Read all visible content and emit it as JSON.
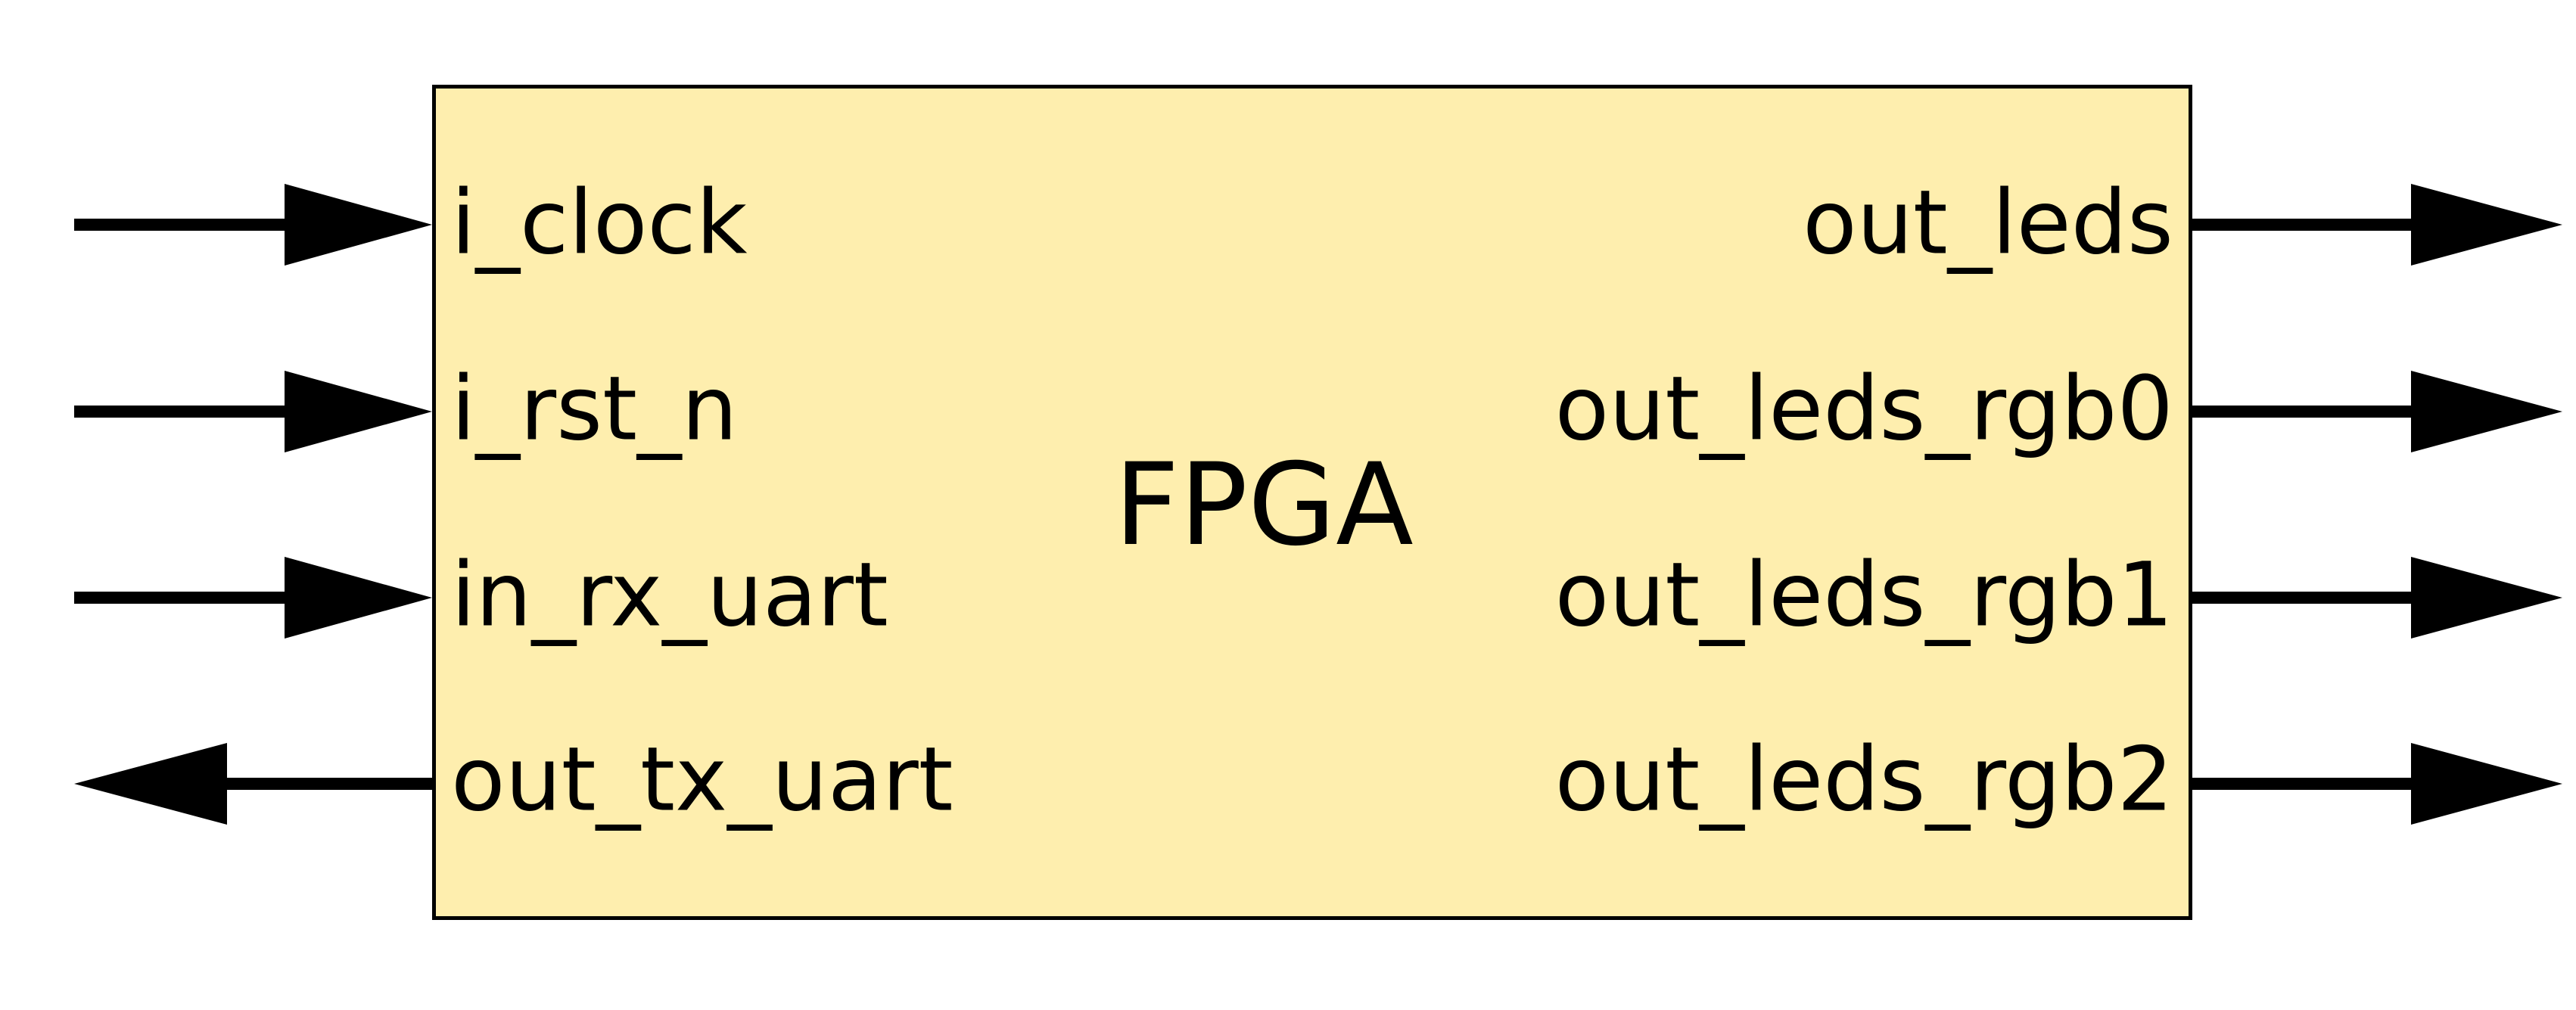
{
  "block": {
    "title": "FPGA",
    "fill": "#feeeae",
    "stroke": "#000000"
  },
  "ports": {
    "left": [
      {
        "name": "i_clock",
        "direction": "in"
      },
      {
        "name": "i_rst_n",
        "direction": "in"
      },
      {
        "name": "in_rx_uart",
        "direction": "in"
      },
      {
        "name": "out_tx_uart",
        "direction": "out"
      }
    ],
    "right": [
      {
        "name": "out_leds",
        "direction": "out"
      },
      {
        "name": "out_leds_rgb0",
        "direction": "out"
      },
      {
        "name": "out_leds_rgb1",
        "direction": "out"
      },
      {
        "name": "out_leds_rgb2",
        "direction": "out"
      }
    ]
  }
}
